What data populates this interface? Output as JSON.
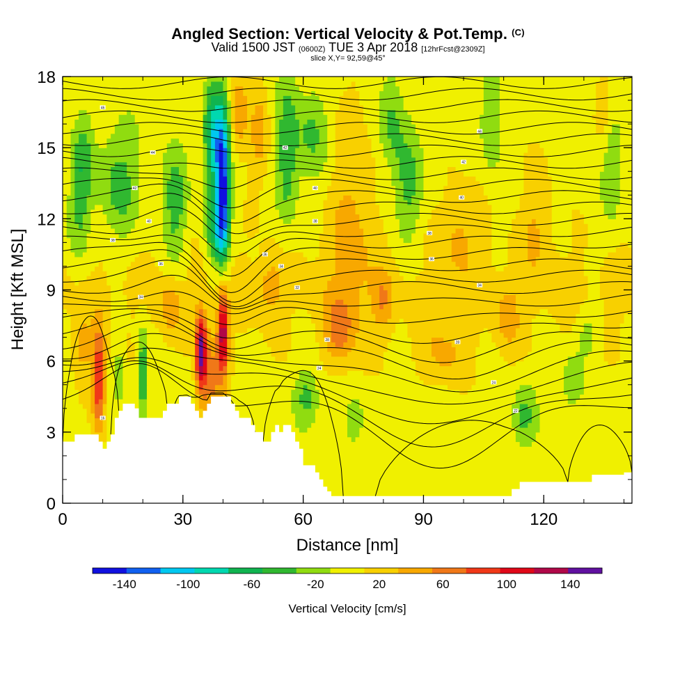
{
  "title": {
    "main": "Angled Section: Vertical Velocity & Pot.Temp.",
    "main_suffix": "(C)",
    "valid_prefix": "Valid 1500 JST",
    "valid_z": "(0600Z)",
    "valid_date": "TUE 3 Apr 2018",
    "valid_fcst": "[12hrFcst@2309Z]",
    "slice": "slice X,Y= 92,59@45°"
  },
  "colors": {
    "bins": [
      "#1010e0",
      "#1060f0",
      "#00c8f0",
      "#00d8b0",
      "#10b450",
      "#30b830",
      "#90dc10",
      "#f0f000",
      "#f8d000",
      "#f8a800",
      "#f07818",
      "#f03818",
      "#e00818",
      "#b00848",
      "#6010a0"
    ],
    "terrain": "#ffffff",
    "contour": "#000000"
  },
  "chart_data": {
    "type": "heatmap",
    "xlabel": "Distance [nm]",
    "ylabel": "Height [Kft MSL]",
    "xlim": [
      0,
      142
    ],
    "ylim": [
      0,
      18
    ],
    "xticks": [
      0,
      30,
      60,
      90,
      120
    ],
    "yticks": [
      0,
      3,
      6,
      9,
      12,
      15,
      18
    ],
    "colorbar": {
      "label": "Vertical Velocity [cm/s]",
      "ticks": [
        -140,
        -100,
        -60,
        -20,
        20,
        60,
        100,
        140
      ],
      "range": [
        -160,
        160
      ],
      "bin_width": 20
    },
    "terrain_profile": {
      "x": [
        0,
        2,
        3,
        8,
        9,
        10,
        11,
        12,
        13,
        14,
        15,
        16,
        17,
        18,
        19,
        20,
        22,
        24,
        25,
        26,
        27,
        28,
        29,
        30,
        31,
        32,
        33,
        34,
        35,
        36,
        37,
        38,
        40,
        42,
        43,
        44,
        45,
        46,
        47,
        48,
        50,
        52,
        53,
        54,
        55,
        56,
        57,
        58,
        59,
        60,
        61,
        62,
        63,
        64,
        65,
        66,
        67,
        68,
        70,
        72,
        74,
        76,
        80,
        90,
        100,
        110,
        112,
        114,
        126,
        128,
        132,
        138,
        140,
        142
      ],
      "height": [
        2.6,
        2.6,
        2.9,
        2.9,
        2.6,
        2.3,
        2.6,
        2.9,
        3.6,
        3.9,
        4.2,
        4.2,
        4.2,
        4.0,
        3.6,
        3.6,
        3.6,
        3.6,
        3.9,
        4.2,
        4.2,
        4.2,
        4.5,
        4.5,
        4.5,
        4.2,
        3.9,
        3.6,
        3.9,
        4.2,
        4.5,
        4.5,
        4.5,
        4.2,
        3.9,
        3.6,
        3.6,
        3.6,
        3.3,
        3.0,
        2.6,
        3.0,
        3.3,
        3.0,
        3.3,
        3.3,
        3.0,
        2.6,
        2.3,
        1.6,
        1.6,
        1.6,
        1.3,
        1.0,
        0.7,
        0.5,
        0.3,
        0.3,
        0.3,
        0.3,
        0.3,
        0.3,
        0.3,
        0.3,
        0.3,
        0.3,
        0.6,
        0.9,
        0.9,
        0.9,
        1.2,
        1.2,
        1.3,
        1.3
      ]
    },
    "isentrope_labels": [
      {
        "x": 10,
        "y": 16.7,
        "text": "46"
      },
      {
        "x": 22.5,
        "y": 14.8,
        "text": "44"
      },
      {
        "x": 18,
        "y": 13.3,
        "text": "42"
      },
      {
        "x": 21.5,
        "y": 11.9,
        "text": "40"
      },
      {
        "x": 12.5,
        "y": 11.1,
        "text": "38"
      },
      {
        "x": 24.5,
        "y": 10.1,
        "text": "36"
      },
      {
        "x": 19.5,
        "y": 8.7,
        "text": "34"
      },
      {
        "x": 10,
        "y": 3.6,
        "text": "16"
      },
      {
        "x": 55.5,
        "y": 15.0,
        "text": "42"
      },
      {
        "x": 63,
        "y": 13.3,
        "text": "40"
      },
      {
        "x": 63,
        "y": 11.9,
        "text": "38"
      },
      {
        "x": 50.5,
        "y": 10.5,
        "text": "36"
      },
      {
        "x": 54.5,
        "y": 10.0,
        "text": "34"
      },
      {
        "x": 58.5,
        "y": 9.1,
        "text": "32"
      },
      {
        "x": 66,
        "y": 6.9,
        "text": "28"
      },
      {
        "x": 64,
        "y": 5.7,
        "text": "24"
      },
      {
        "x": 104,
        "y": 15.7,
        "text": "44"
      },
      {
        "x": 100,
        "y": 14.4,
        "text": "42"
      },
      {
        "x": 99.5,
        "y": 12.9,
        "text": "40"
      },
      {
        "x": 91.5,
        "y": 11.4,
        "text": "38"
      },
      {
        "x": 92,
        "y": 10.3,
        "text": "36"
      },
      {
        "x": 104,
        "y": 9.2,
        "text": "34"
      },
      {
        "x": 98.5,
        "y": 6.8,
        "text": "28"
      },
      {
        "x": 107.5,
        "y": 5.1,
        "text": "24"
      },
      {
        "x": 113,
        "y": 3.9,
        "text": "22"
      }
    ]
  }
}
